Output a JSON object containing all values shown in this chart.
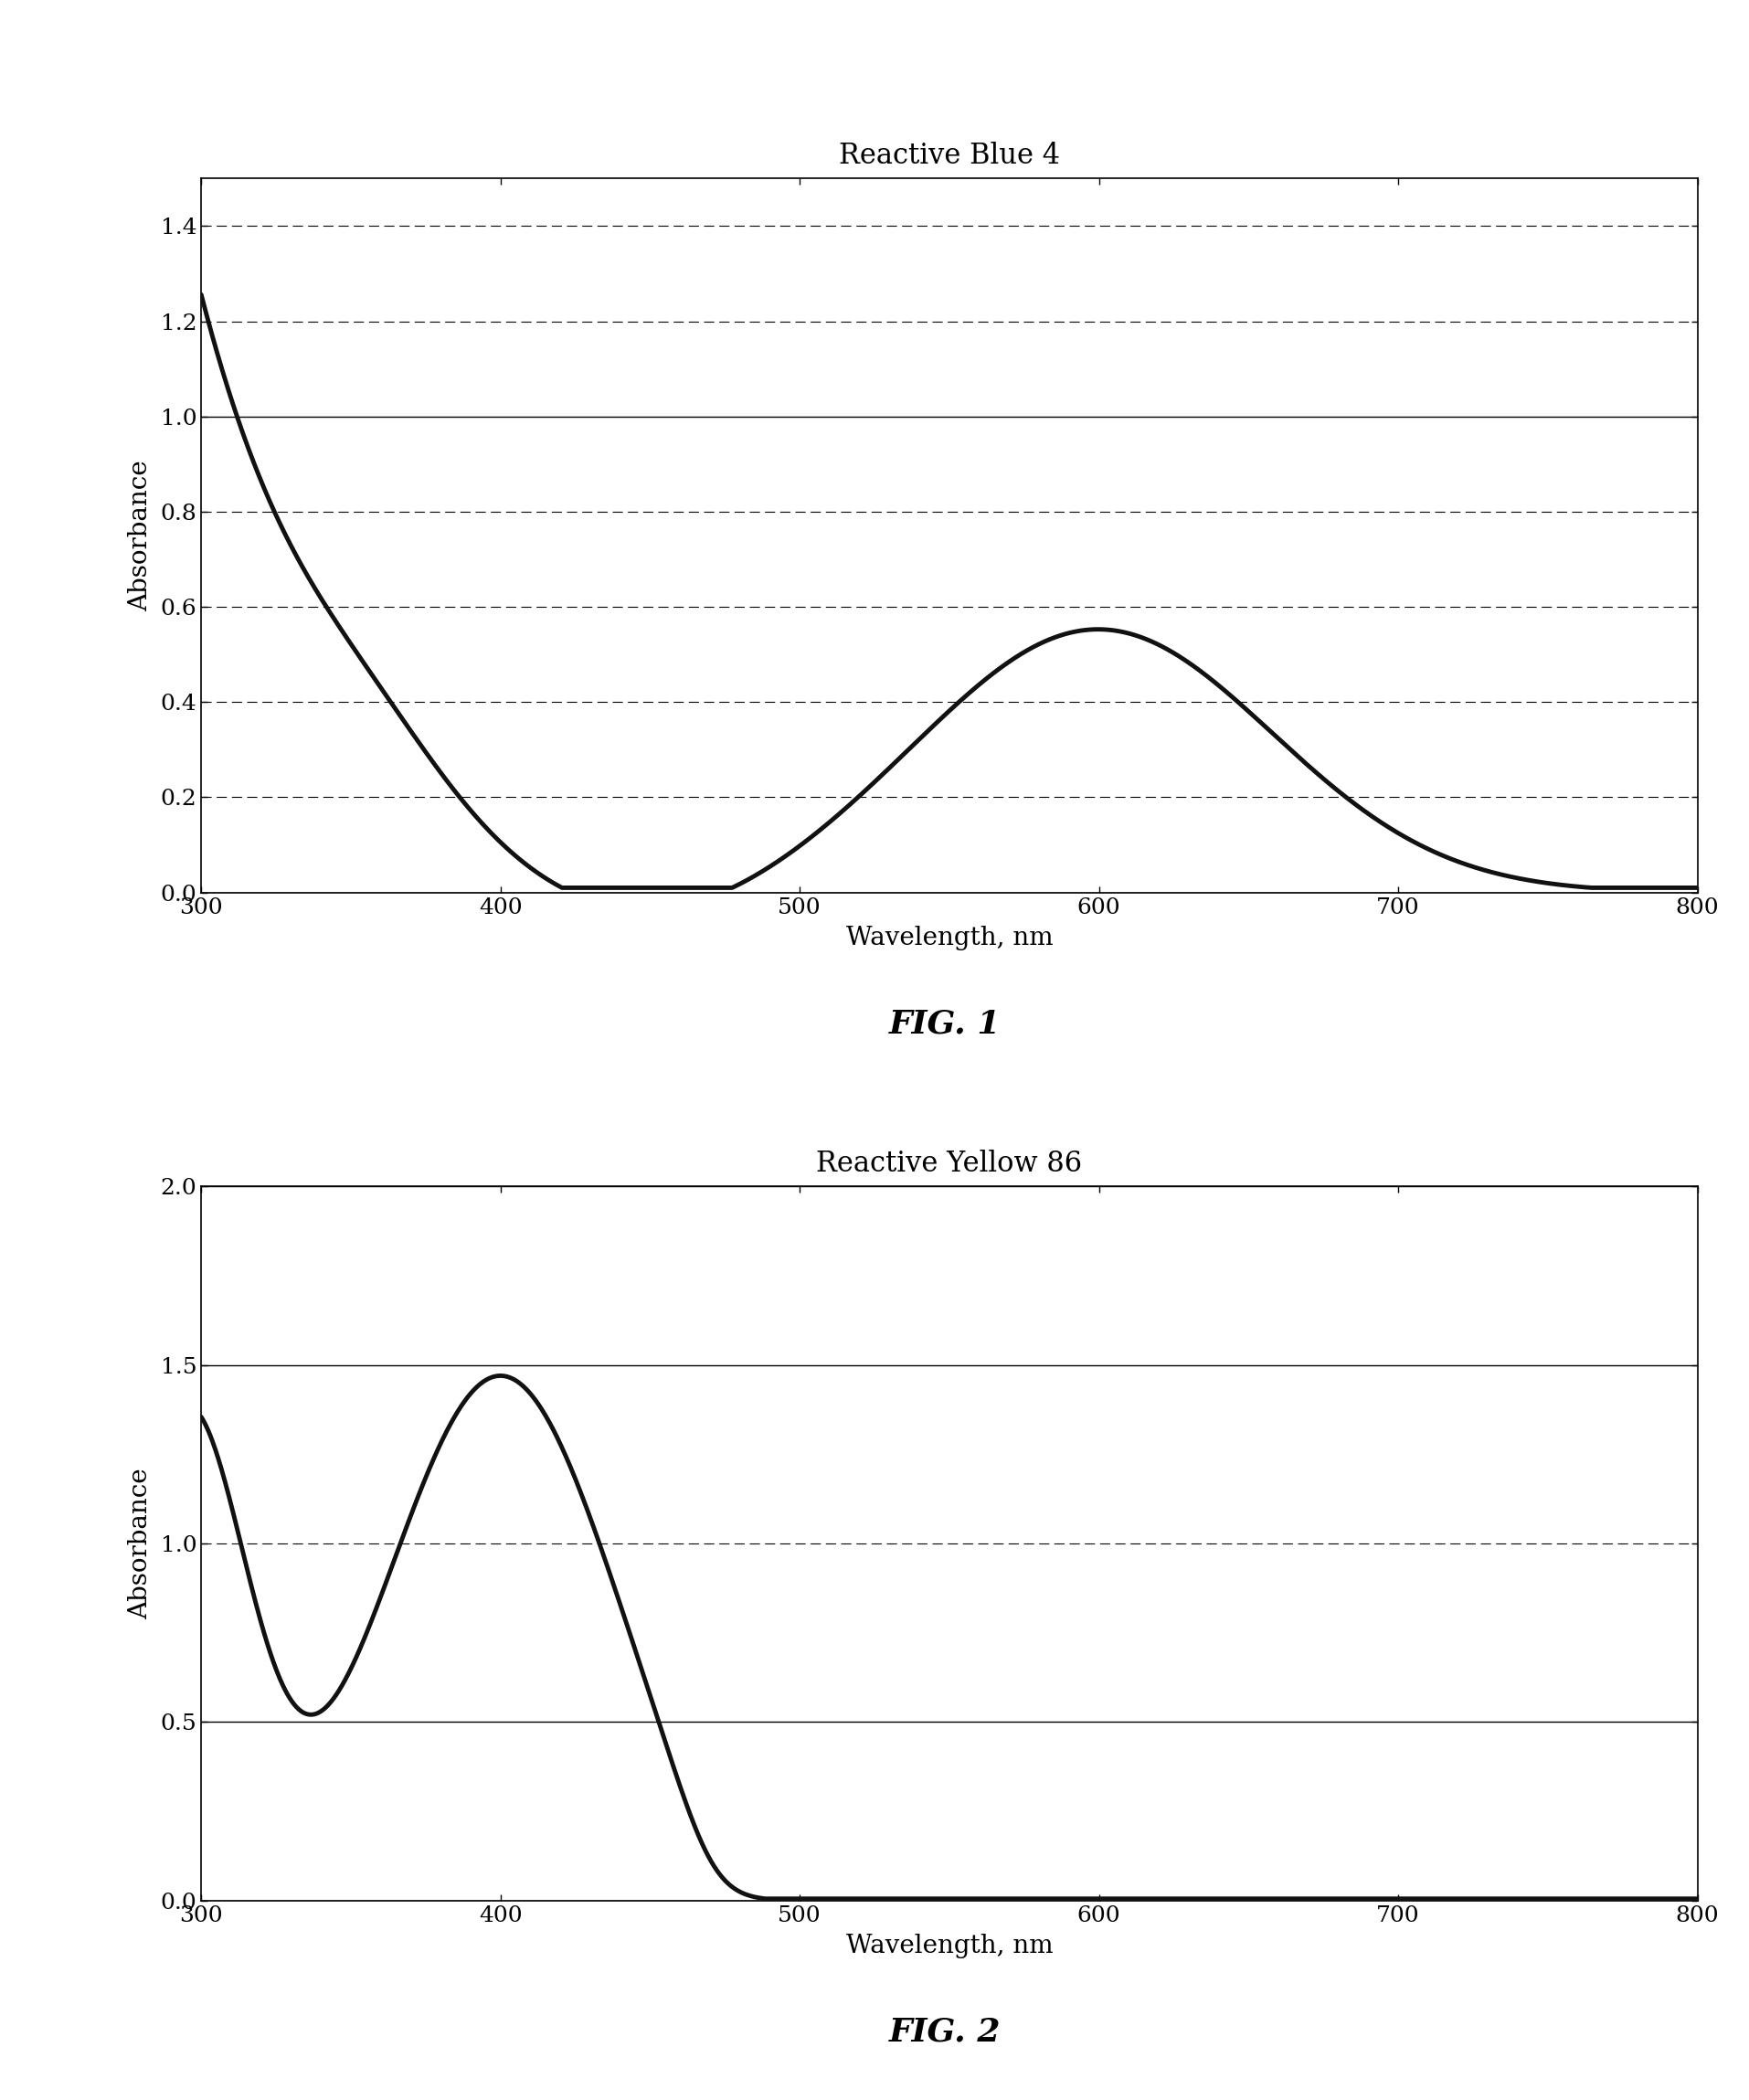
{
  "fig1_title": "Reactive Blue 4",
  "fig1_caption": "FIG. 1",
  "fig2_title": "Reactive Yellow 86",
  "fig2_caption": "FIG. 2",
  "xlabel": "Wavelength, nm",
  "ylabel": "Absorbance",
  "fig1_ylim": [
    0,
    1.5
  ],
  "fig1_yticks": [
    0,
    0.2,
    0.4,
    0.6,
    0.8,
    1.0,
    1.2,
    1.4
  ],
  "fig2_ylim": [
    0,
    2.0
  ],
  "fig2_yticks": [
    0,
    0.5,
    1.0,
    1.5,
    2.0
  ],
  "xlim": [
    300,
    800
  ],
  "xticks": [
    300,
    400,
    500,
    600,
    700,
    800
  ],
  "line_color": "#111111",
  "line_width": 3.5,
  "bg_color": "#ffffff",
  "fig1_solid_gridlines": [
    0,
    1.0
  ],
  "fig1_dashed_gridlines": [
    0.2,
    0.4,
    0.6,
    0.8,
    1.2,
    1.4
  ],
  "fig2_solid_gridlines": [
    0,
    0.5,
    1.5,
    2.0
  ],
  "fig2_dashed_gridlines": [
    1.0
  ],
  "title_fontsize": 22,
  "label_fontsize": 20,
  "tick_fontsize": 18,
  "caption_fontsize": 26
}
